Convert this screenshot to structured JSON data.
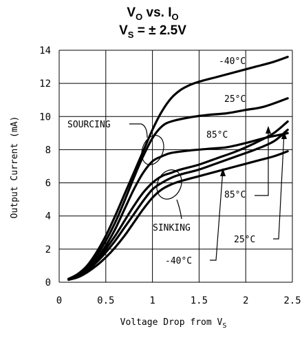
{
  "chart_data": {
    "type": "line",
    "title_parts": {
      "line1_main": "V",
      "line1_sub": "O",
      "line1_mid": " vs. I",
      "line1_sub2": "O",
      "line2_main": "V",
      "line2_sub": "S",
      "line2_rest": " = ± 2.5V"
    },
    "xlabel_main": "Voltage Drop from V",
    "xlabel_sub": "S",
    "ylabel": "Output Current (mA)",
    "xlim": [
      0,
      2.5
    ],
    "ylim": [
      0,
      14
    ],
    "xticks": [
      "0",
      "0.5",
      "1",
      "1.5",
      "2",
      "2.5"
    ],
    "yticks": [
      "0",
      "2",
      "4",
      "6",
      "8",
      "10",
      "12",
      "14"
    ],
    "grid": true,
    "annotations": {
      "sourcing": "SOURCING",
      "sinking": "SINKING",
      "src_m40": "-40°C",
      "src_25": "25°C",
      "src_85": "85°C",
      "snk_85": "85°C",
      "snk_25": "25°C",
      "snk_m40": "-40°C"
    },
    "series": [
      {
        "group": "SOURCING",
        "temp": "-40°C",
        "x": [
          0.1,
          0.2,
          0.3,
          0.4,
          0.5,
          0.6,
          0.7,
          0.8,
          0.9,
          1.0,
          1.1,
          1.2,
          1.3,
          1.4,
          1.5,
          1.7,
          1.9,
          2.1,
          2.3,
          2.45
        ],
        "y": [
          0.2,
          0.5,
          1.0,
          1.8,
          2.8,
          4.0,
          5.3,
          6.6,
          7.9,
          9.2,
          10.3,
          11.1,
          11.6,
          11.9,
          12.1,
          12.4,
          12.7,
          13.0,
          13.3,
          13.6
        ]
      },
      {
        "group": "SOURCING",
        "temp": "25°C",
        "x": [
          0.1,
          0.2,
          0.3,
          0.4,
          0.5,
          0.6,
          0.7,
          0.8,
          0.9,
          1.0,
          1.1,
          1.2,
          1.4,
          1.6,
          1.8,
          2.0,
          2.2,
          2.45
        ],
        "y": [
          0.2,
          0.45,
          0.9,
          1.6,
          2.5,
          3.6,
          4.9,
          6.3,
          7.6,
          8.7,
          9.4,
          9.7,
          9.95,
          10.1,
          10.2,
          10.4,
          10.6,
          11.1
        ]
      },
      {
        "group": "SOURCING",
        "temp": "85°C",
        "x": [
          0.1,
          0.2,
          0.3,
          0.4,
          0.5,
          0.6,
          0.7,
          0.8,
          0.9,
          1.0,
          1.1,
          1.2,
          1.4,
          1.6,
          1.8,
          2.0,
          2.2,
          2.45
        ],
        "y": [
          0.2,
          0.4,
          0.8,
          1.4,
          2.2,
          3.2,
          4.4,
          5.6,
          6.6,
          7.3,
          7.6,
          7.8,
          7.95,
          8.05,
          8.15,
          8.4,
          8.7,
          9.0
        ]
      },
      {
        "group": "SINKING",
        "temp": "85°C",
        "x": [
          0.1,
          0.2,
          0.3,
          0.4,
          0.5,
          0.6,
          0.7,
          0.8,
          0.9,
          1.0,
          1.1,
          1.2,
          1.3,
          1.5,
          1.7,
          1.9,
          2.1,
          2.3,
          2.45
        ],
        "y": [
          0.2,
          0.4,
          0.8,
          1.3,
          2.0,
          2.8,
          3.7,
          4.6,
          5.4,
          6.0,
          6.4,
          6.6,
          6.8,
          7.1,
          7.5,
          7.9,
          8.4,
          9.0,
          9.7
        ]
      },
      {
        "group": "SINKING",
        "temp": "25°C",
        "x": [
          0.1,
          0.2,
          0.3,
          0.4,
          0.5,
          0.6,
          0.7,
          0.8,
          0.9,
          1.0,
          1.1,
          1.2,
          1.3,
          1.5,
          1.7,
          1.9,
          2.1,
          2.3,
          2.45
        ],
        "y": [
          0.2,
          0.35,
          0.7,
          1.2,
          1.8,
          2.5,
          3.3,
          4.1,
          4.9,
          5.6,
          6.0,
          6.3,
          6.5,
          6.8,
          7.2,
          7.6,
          8.0,
          8.5,
          9.2
        ]
      },
      {
        "group": "SINKING",
        "temp": "-40°C",
        "x": [
          0.1,
          0.2,
          0.3,
          0.4,
          0.5,
          0.6,
          0.7,
          0.8,
          0.9,
          1.0,
          1.1,
          1.2,
          1.3,
          1.5,
          1.7,
          1.9,
          2.1,
          2.3,
          2.45
        ],
        "y": [
          0.15,
          0.3,
          0.6,
          1.0,
          1.5,
          2.1,
          2.8,
          3.6,
          4.4,
          5.1,
          5.6,
          5.9,
          6.1,
          6.4,
          6.7,
          7.0,
          7.3,
          7.6,
          7.9
        ]
      }
    ]
  }
}
